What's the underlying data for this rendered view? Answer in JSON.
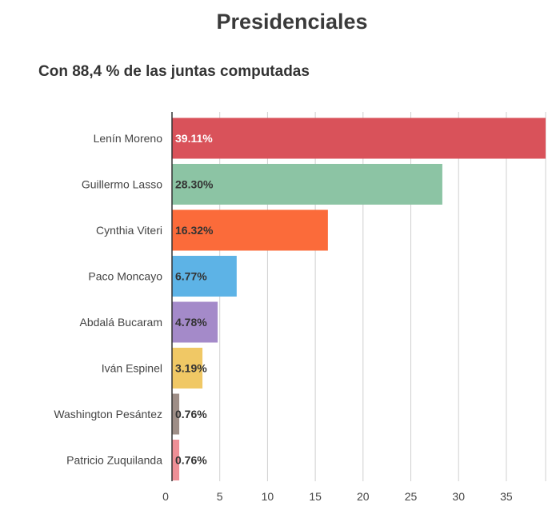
{
  "chart_data": {
    "type": "bar",
    "orientation": "horizontal",
    "title": "Presidenciales",
    "subtitle": "Con 88,4 % de las juntas computadas",
    "categories": [
      "Lenín Moreno",
      "Guillermo Lasso",
      "Cynthia Viteri",
      "Paco Moncayo",
      "Abdalá Bucaram",
      "Iván Espinel",
      "Washington Pesántez",
      "Patricio Zuquilanda"
    ],
    "values": [
      39.11,
      28.3,
      16.32,
      6.77,
      4.78,
      3.19,
      0.76,
      0.76
    ],
    "value_labels": [
      "39.11%",
      "28.30%",
      "16.32%",
      "6.77%",
      "4.78%",
      "3.19%",
      "0.76%",
      "0.76%"
    ],
    "colors": [
      "#d9525a",
      "#8cc4a4",
      "#fb6b3a",
      "#5db3e6",
      "#a48ac9",
      "#f0c865",
      "#9e8e87",
      "#ed8f96"
    ],
    "value_label_colors": [
      "#ffffff",
      "#333333",
      "#333333",
      "#333333",
      "#333333",
      "#333333",
      "#333333",
      "#333333"
    ],
    "xticks": [
      0,
      5,
      10,
      15,
      20,
      25,
      30,
      35
    ],
    "xlim": [
      0,
      39.11
    ],
    "grid": true,
    "xlabel": "",
    "ylabel": ""
  }
}
